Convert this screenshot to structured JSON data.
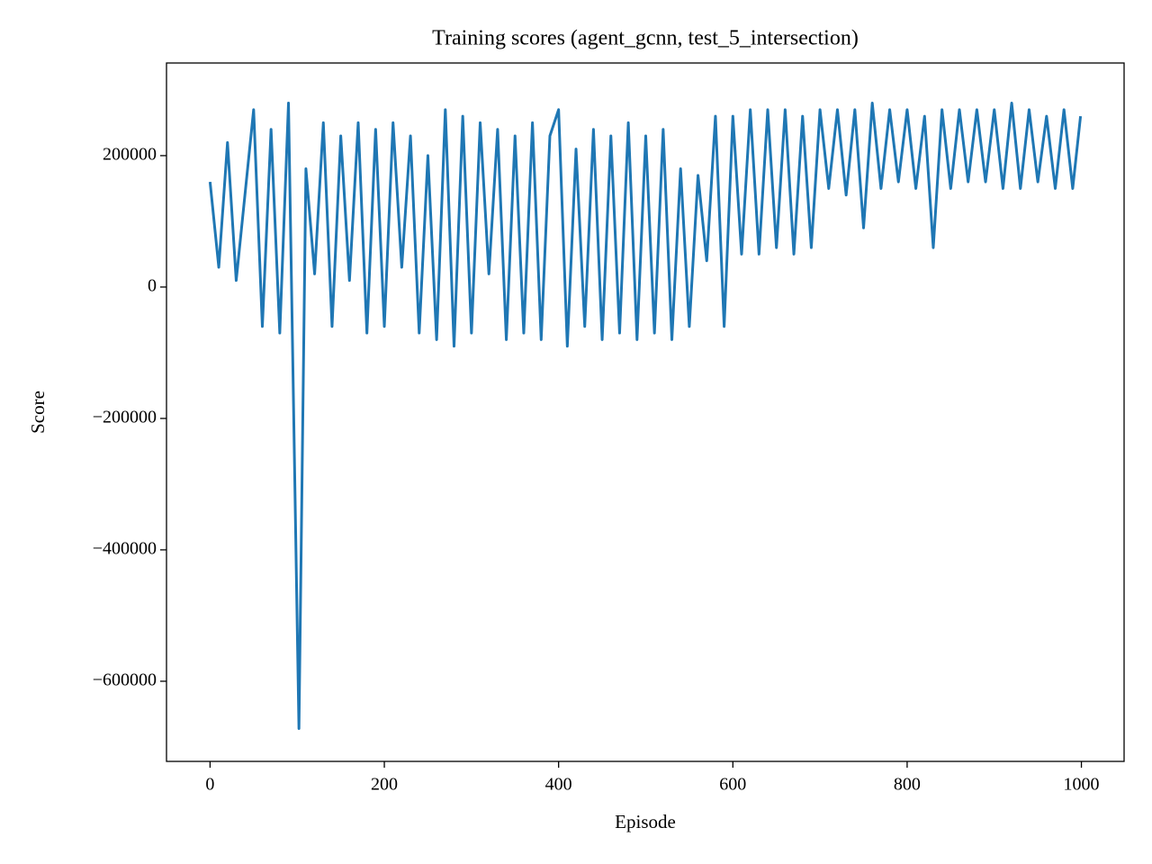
{
  "chart_data": {
    "type": "line",
    "title": "Training scores (agent_gcnn, test_5_intersection)",
    "x_label": "Episode",
    "y_label": "Score",
    "x": [
      0,
      10,
      20,
      30,
      40,
      50,
      60,
      70,
      80,
      90,
      102,
      110,
      120,
      130,
      140,
      150,
      160,
      170,
      180,
      190,
      200,
      210,
      220,
      230,
      240,
      250,
      260,
      270,
      280,
      290,
      300,
      310,
      320,
      330,
      340,
      350,
      360,
      370,
      380,
      390,
      400,
      410,
      420,
      430,
      440,
      450,
      460,
      470,
      480,
      490,
      500,
      510,
      520,
      530,
      540,
      550,
      560,
      570,
      580,
      590,
      600,
      610,
      620,
      630,
      640,
      650,
      660,
      670,
      680,
      690,
      700,
      710,
      720,
      730,
      740,
      750,
      760,
      770,
      780,
      790,
      800,
      810,
      820,
      830,
      840,
      850,
      860,
      870,
      880,
      890,
      900,
      910,
      920,
      930,
      940,
      950,
      960,
      970,
      980,
      990,
      999
    ],
    "series": [
      {
        "name": "Score",
        "color": "#1f77b4",
        "values": [
          160000,
          30000,
          220000,
          10000,
          140000,
          270000,
          -60000,
          240000,
          -70000,
          280000,
          -672000,
          180000,
          20000,
          250000,
          -60000,
          230000,
          10000,
          250000,
          -70000,
          240000,
          -60000,
          250000,
          30000,
          230000,
          -70000,
          200000,
          -80000,
          270000,
          -90000,
          260000,
          -70000,
          250000,
          20000,
          240000,
          -80000,
          230000,
          -70000,
          250000,
          -80000,
          230000,
          270000,
          -90000,
          210000,
          -60000,
          240000,
          -80000,
          230000,
          -70000,
          250000,
          -80000,
          230000,
          -70000,
          240000,
          -80000,
          180000,
          -60000,
          170000,
          40000,
          260000,
          -60000,
          260000,
          50000,
          270000,
          50000,
          270000,
          60000,
          270000,
          50000,
          260000,
          60000,
          270000,
          150000,
          270000,
          140000,
          270000,
          90000,
          280000,
          150000,
          270000,
          160000,
          270000,
          150000,
          260000,
          60000,
          270000,
          150000,
          270000,
          160000,
          270000,
          160000,
          270000,
          150000,
          280000,
          150000,
          270000,
          160000,
          260000,
          150000,
          270000,
          150000,
          260000
        ]
      }
    ],
    "xlim": [
      -50,
      1049
    ],
    "ylim": [
      -722000,
      341000
    ],
    "xticks": [
      0,
      200,
      400,
      600,
      800,
      1000
    ],
    "yticks": [
      {
        "value": -600000,
        "label": "−600000"
      },
      {
        "value": -400000,
        "label": "−400000"
      },
      {
        "value": -200000,
        "label": "−200000"
      },
      0,
      200000
    ]
  }
}
